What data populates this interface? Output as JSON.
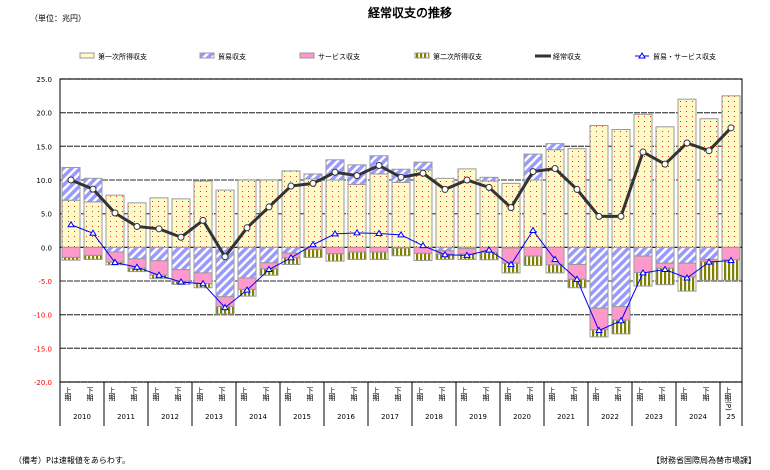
{
  "header": {
    "title": "経常収支の推移",
    "unit": "（単位：兆円）"
  },
  "footer": {
    "note": "（備考）Pは速報値をあらわす。",
    "source": "【財務省国際局為替市場課】"
  },
  "colors": {
    "primary_income": "#FFFAC8",
    "primary_dots": "#C04020",
    "trade": "#9999FF",
    "services": "#FF99CC",
    "secondary_income": "#808000",
    "current_account": "#333333",
    "goods_services": "#0000FF",
    "negative_ticks": "#FF0000"
  },
  "chart_data": {
    "type": "bar",
    "stacked": true,
    "title": "経常収支の推移",
    "ylabel": "（単位：兆円）",
    "ylim": [
      -20.0,
      25.0
    ],
    "yticks": [
      "25.0",
      "20.0",
      "15.0",
      "10.0",
      "5.0",
      "0.0",
      "-5.0",
      "-10.0",
      "-15.0",
      "-20.0"
    ],
    "grid": true,
    "legend_position": "top",
    "years": [
      "2010",
      "2011",
      "2012",
      "2013",
      "2014",
      "2015",
      "2016",
      "2017",
      "2018",
      "2019",
      "2020",
      "2021",
      "2022",
      "2023",
      "2024",
      "25"
    ],
    "half_labels": {
      "first": "上期",
      "second": "下期",
      "last": "上期(P)"
    },
    "categories": [
      "2010上期",
      "2010下期",
      "2011上期",
      "2011下期",
      "2012上期",
      "2012下期",
      "2013上期",
      "2013下期",
      "2014上期",
      "2014下期",
      "2015上期",
      "2015下期",
      "2016上期",
      "2016下期",
      "2017上期",
      "2017下期",
      "2018上期",
      "2018下期",
      "2019上期",
      "2019下期",
      "2020上期",
      "2020下期",
      "2021上期",
      "2021下期",
      "2022上期",
      "2022下期",
      "2023上期",
      "2023下期",
      "2024上期",
      "2024下期",
      "2025上期(P)"
    ],
    "series": [
      {
        "name": "第一次所得収支",
        "kind": "bar",
        "values": [
          7.0,
          6.75,
          7.75,
          6.6,
          7.35,
          7.2,
          9.85,
          8.5,
          10.0,
          10.0,
          11.35,
          10.15,
          10.0,
          9.35,
          10.9,
          9.65,
          11.5,
          10.25,
          11.65,
          9.85,
          9.5,
          10.0,
          14.5,
          14.65,
          18.1,
          17.5,
          19.75,
          17.9,
          22.0,
          19.1,
          22.5
        ]
      },
      {
        "name": "貿易収支",
        "kind": "bar",
        "values": [
          4.85,
          3.5,
          -0.7,
          -1.7,
          -2.0,
          -3.3,
          -3.8,
          -7.35,
          -4.55,
          -2.3,
          -0.85,
          0.75,
          3.0,
          2.9,
          2.7,
          1.95,
          1.15,
          -0.5,
          -0.2,
          0.55,
          -0.1,
          3.85,
          0.9,
          -2.55,
          -9.05,
          -8.8,
          -1.3,
          -2.35,
          -2.35,
          -1.8,
          0.0
        ]
      },
      {
        "name": "サービス収支",
        "kind": "bar",
        "values": [
          -1.5,
          -1.2,
          -1.5,
          -1.4,
          -2.1,
          -1.75,
          -1.6,
          -1.45,
          -1.7,
          -0.9,
          -0.7,
          -0.3,
          -0.95,
          -0.7,
          -0.7,
          -0.1,
          -0.9,
          -0.5,
          -0.8,
          -0.75,
          -2.25,
          -1.3,
          -2.6,
          -2.2,
          -3.2,
          -2.0,
          -2.45,
          -0.75,
          -2.05,
          -0.3,
          -1.85
        ]
      },
      {
        "name": "第二次所得収支",
        "kind": "bar",
        "values": [
          -0.4,
          -0.6,
          -0.4,
          -0.5,
          -0.55,
          -0.45,
          -0.6,
          -1.1,
          -1.0,
          -0.95,
          -1.0,
          -1.2,
          -1.1,
          -1.1,
          -1.1,
          -1.15,
          -1.05,
          -0.8,
          -0.8,
          -1.1,
          -1.45,
          -1.4,
          -1.2,
          -1.25,
          -1.05,
          -2.05,
          -2.0,
          -2.45,
          -2.1,
          -2.8,
          -3.05
        ]
      },
      {
        "name": "経常収支",
        "kind": "line",
        "values": [
          10.0,
          8.65,
          5.1,
          3.1,
          2.75,
          1.5,
          4.0,
          -1.4,
          2.9,
          6.0,
          9.1,
          9.5,
          11.15,
          10.65,
          12.15,
          10.4,
          11.0,
          8.6,
          10.0,
          8.9,
          5.9,
          11.25,
          11.7,
          8.6,
          4.6,
          4.6,
          14.15,
          12.35,
          15.5,
          14.35,
          17.75
        ]
      },
      {
        "name": "貿易・サービス収支",
        "kind": "line",
        "values": [
          3.35,
          2.1,
          -2.25,
          -2.95,
          -4.15,
          -5.15,
          -5.4,
          -8.95,
          -6.35,
          -3.3,
          -1.55,
          0.4,
          2.0,
          2.15,
          2.05,
          1.85,
          0.25,
          -1.1,
          -1.2,
          -0.4,
          -2.55,
          2.5,
          -1.8,
          -4.75,
          -12.35,
          -10.9,
          -3.8,
          -3.3,
          -4.55,
          -2.2,
          -1.95
        ]
      }
    ]
  }
}
